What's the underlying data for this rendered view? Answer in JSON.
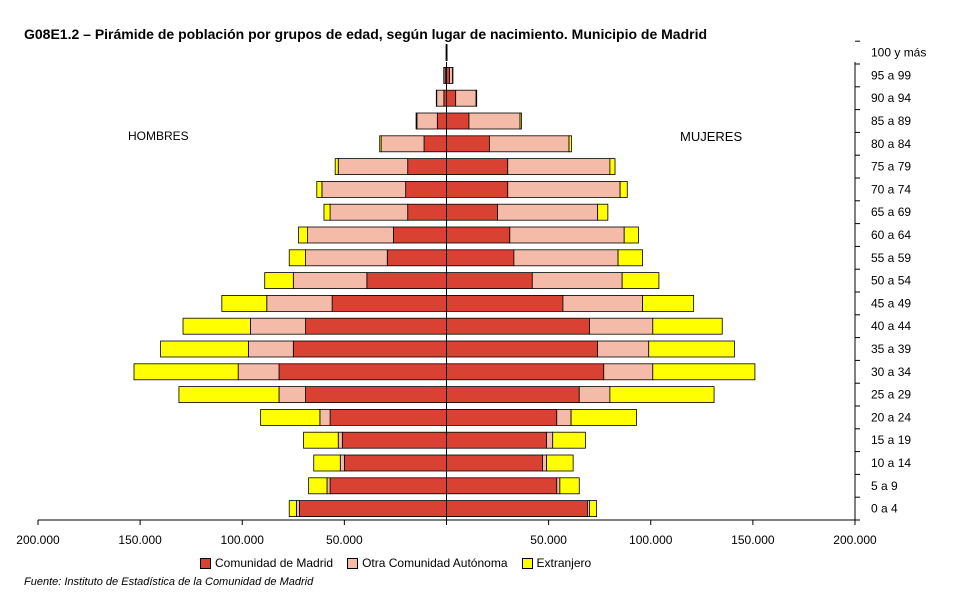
{
  "chart_data": {
    "type": "bar",
    "orientation": "horizontal-population-pyramid",
    "title": "G08E1.2  – Pirámide de población por grupos de edad, según lugar de nacimiento. Municipio de Madrid",
    "side_labels": {
      "left": "HOMBRES",
      "right": "MUJERES"
    },
    "categories": [
      "0 a 4",
      "5 a 9",
      "10 a 14",
      "15 a 19",
      "20 a 24",
      "25 a 29",
      "30 a 34",
      "35 a 39",
      "40 a 44",
      "45 a 49",
      "50 a 54",
      "55 a 59",
      "60 a 64",
      "65 a 69",
      "70 a 74",
      "75 a 79",
      "80 a 84",
      "85 a 89",
      "90 a 94",
      "95 a 99",
      "100 y más"
    ],
    "x_ticks": [
      "200.000",
      "150.000",
      "100.000",
      "50.000",
      "",
      "50.000",
      "100.000",
      "150.000",
      "200.000"
    ],
    "xlim": [
      -200000,
      200000
    ],
    "series": [
      {
        "name": "Comunidad de Madrid",
        "color": "#d94133",
        "men": [
          72000,
          57000,
          50000,
          51000,
          57000,
          69000,
          82000,
          75000,
          69000,
          56000,
          39000,
          29000,
          26000,
          19000,
          20000,
          19000,
          11000,
          4500,
          1300,
          450,
          60
        ],
        "women": [
          69000,
          54000,
          47000,
          49000,
          54000,
          65000,
          77000,
          74000,
          70000,
          57000,
          42000,
          33000,
          31000,
          25000,
          30000,
          30000,
          21000,
          11000,
          4500,
          1500,
          80
        ]
      },
      {
        "name": "Otra Comunidad Autónoma",
        "color": "#f4bba8",
        "men": [
          1500,
          1500,
          2000,
          2000,
          5000,
          13000,
          20000,
          22000,
          27000,
          32000,
          36000,
          40000,
          42000,
          38000,
          41000,
          34000,
          21000,
          10000,
          3500,
          800,
          100
        ],
        "women": [
          1000,
          1500,
          2000,
          3000,
          7000,
          15000,
          24000,
          25000,
          31000,
          39000,
          44000,
          51000,
          56000,
          49000,
          55000,
          50000,
          39000,
          25000,
          10000,
          1500,
          150
        ]
      },
      {
        "name": "Extranjero",
        "color": "#ffff00",
        "men": [
          3500,
          9000,
          13000,
          17000,
          29000,
          49000,
          51000,
          43000,
          33000,
          22000,
          14000,
          8000,
          4500,
          3000,
          2500,
          1500,
          700,
          400,
          200,
          100,
          20
        ],
        "women": [
          3500,
          9500,
          13000,
          16000,
          32000,
          51000,
          50000,
          42000,
          34000,
          25000,
          18000,
          12000,
          7000,
          5000,
          3500,
          2500,
          1200,
          700,
          300,
          150,
          30
        ]
      }
    ],
    "source": "Fuente: Instituto de Estadística de la Comunidad de Madrid"
  }
}
